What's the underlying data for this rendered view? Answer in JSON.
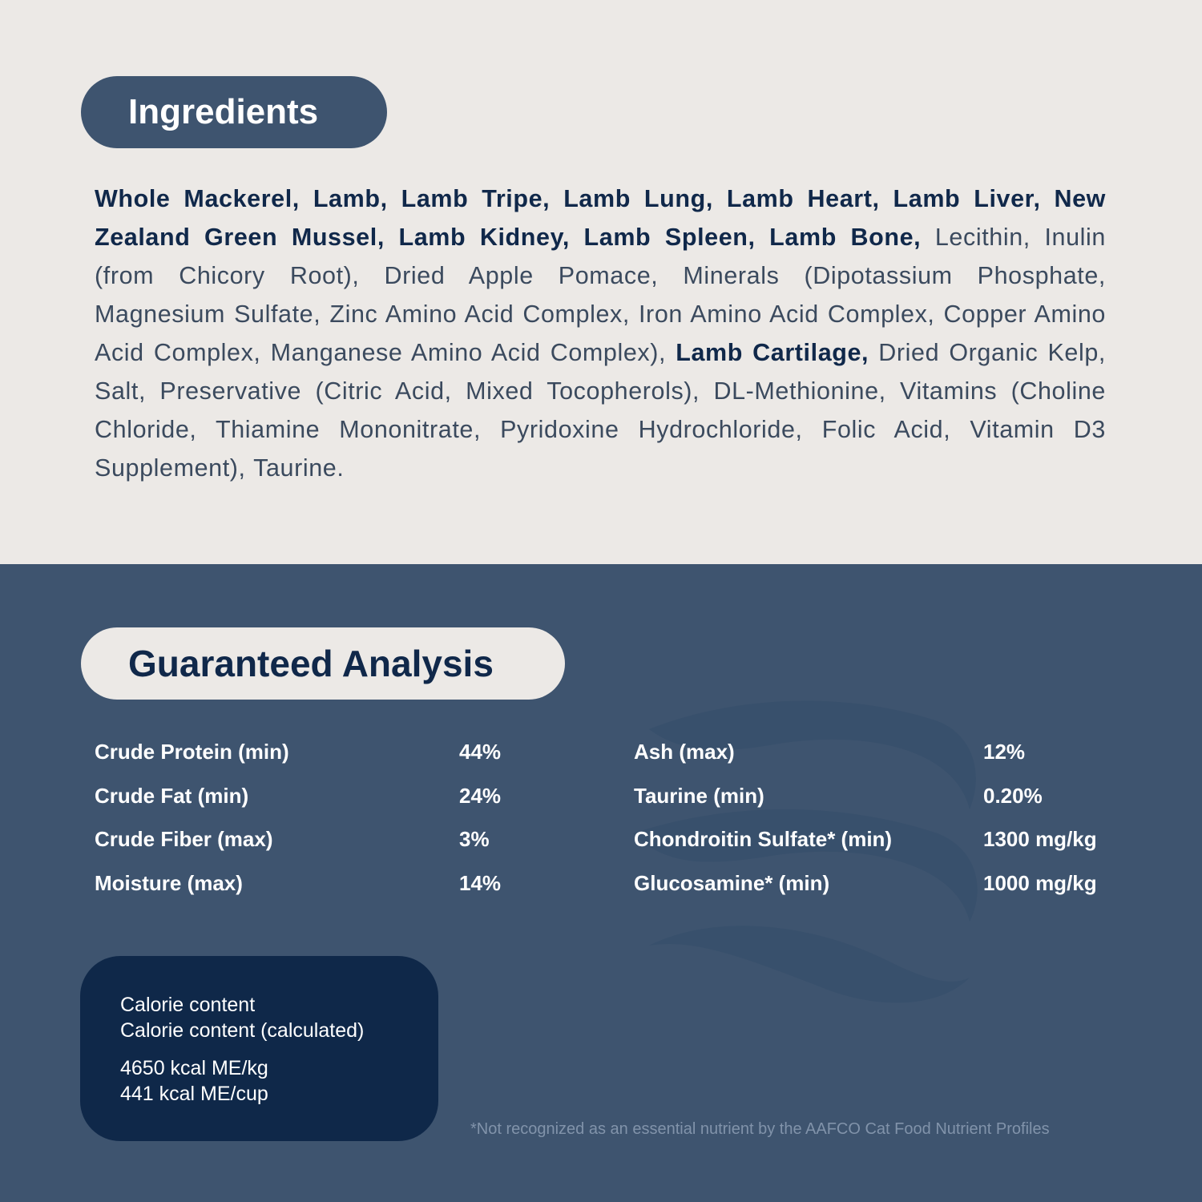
{
  "ingredients": {
    "title": "Ingredients",
    "segments": [
      {
        "text": "Whole Mackerel, Lamb, Lamb Tripe, Lamb Lung, Lamb Heart, Lamb Liver, New Zealand Green Mussel, Lamb Kidney, Lamb Spleen, Lamb Bone,",
        "bold": true
      },
      {
        "text": " Lecithin, Inulin (from Chicory Root), Dried Apple Pomace, Minerals (Dipotassium Phosphate, Magnesium Sulfate, Zinc Amino Acid Complex, Iron Amino Acid Complex, Copper Amino Acid Complex, Manganese Amino Acid Complex), ",
        "bold": false
      },
      {
        "text": "Lamb Cartilage,",
        "bold": true
      },
      {
        "text": " Dried Organic Kelp, Salt, Preservative (Citric Acid, Mixed Tocopherols), DL-Methionine, Vitamins (Choline Chloride, Thiamine Mononitrate, Pyridoxine Hydrochloride, Folic Acid, Vitamin D3 Supplement), Taurine.",
        "bold": false
      }
    ]
  },
  "analysis": {
    "title": "Guaranteed Analysis",
    "left": [
      {
        "label": "Crude Protein (min)",
        "value": "44%"
      },
      {
        "label": "Crude Fat (min)",
        "value": "24%"
      },
      {
        "label": "Crude Fiber (max)",
        "value": "3%"
      },
      {
        "label": "Moisture (max)",
        "value": "14%"
      }
    ],
    "right": [
      {
        "label": "Ash (max)",
        "value": "12%"
      },
      {
        "label": "Taurine (min)",
        "value": "0.20%"
      },
      {
        "label": "Chondroitin Sulfate* (min)",
        "value": "1300 mg/kg"
      },
      {
        "label": "Glucosamine* (min)",
        "value": "1000 mg/kg"
      }
    ]
  },
  "calorie": {
    "line1": "Calorie content",
    "line2": "Calorie content (calculated)",
    "value1": "4650 kcal ME/kg",
    "value2": "441 kcal ME/cup"
  },
  "footnote": "*Not recognized as an essential nutrient by the AAFCO Cat Food Nutrient Profiles",
  "colors": {
    "light_bg": "#ece9e6",
    "blue_bg": "#3e546f",
    "navy": "#10284a",
    "calorie_box": "#0f2849"
  },
  "decoration": "wave-icon"
}
